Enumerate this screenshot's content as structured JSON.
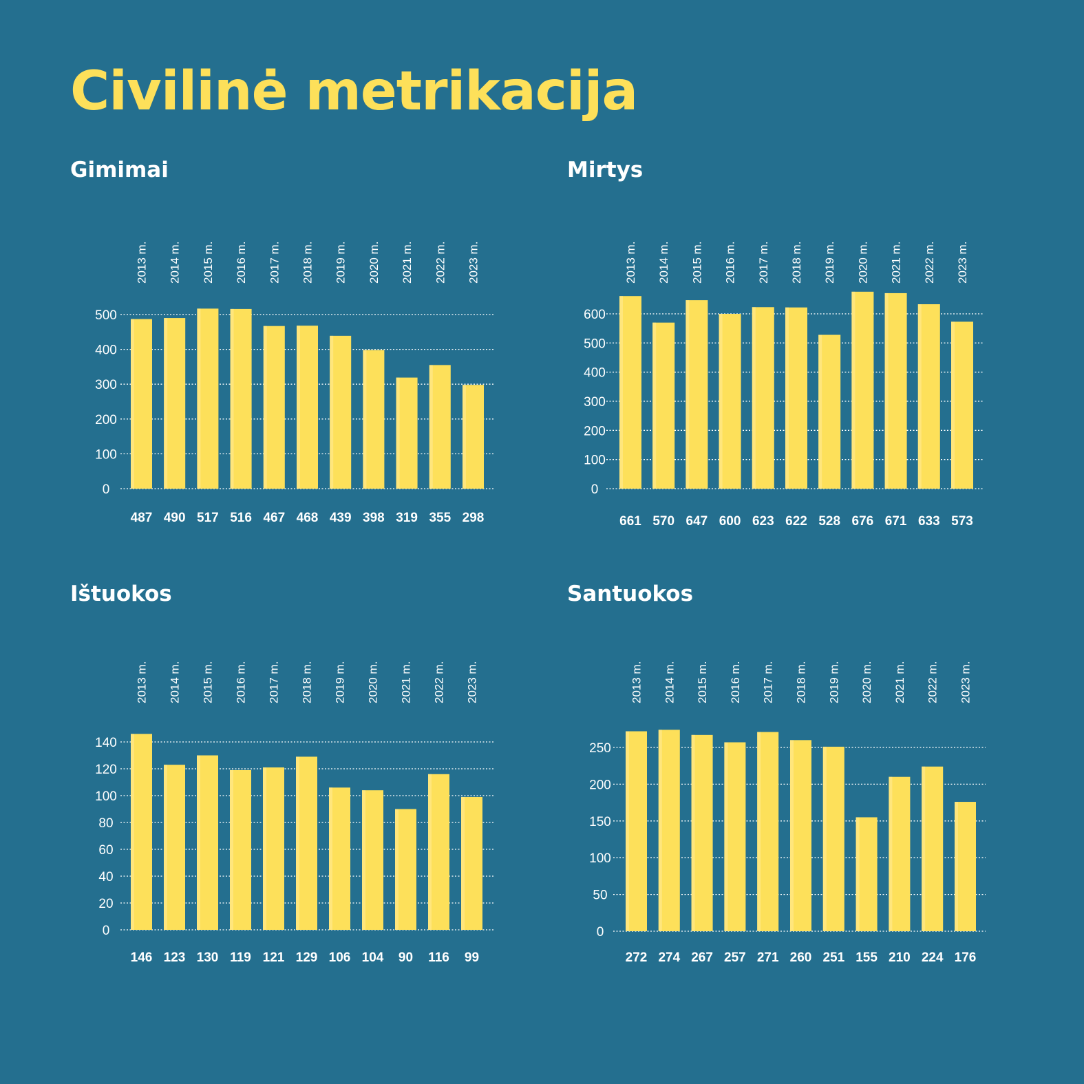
{
  "page": {
    "title": "Civilinė metrikacija",
    "colors": {
      "background": "#246f8f",
      "accent": "#fde05a",
      "bar": "#fde05a",
      "text": "#ffffff"
    }
  },
  "panels": [
    {
      "id": "gimimai",
      "title": "Gimimai"
    },
    {
      "id": "mirtys",
      "title": "Mirtys"
    },
    {
      "id": "istuokos",
      "title": "Ištuokos"
    },
    {
      "id": "santuokos",
      "title": "Santuokos"
    }
  ],
  "chart_data": [
    {
      "type": "bar",
      "title": "Gimimai",
      "categories": [
        "2013 m.",
        "2014 m.",
        "2015 m.",
        "2016 m.",
        "2017 m.",
        "2018 m.",
        "2019 m.",
        "2020 m.",
        "2021 m.",
        "2022 m.",
        "2023 m."
      ],
      "values": [
        487,
        490,
        517,
        516,
        467,
        468,
        439,
        398,
        319,
        355,
        298
      ],
      "value_labels": [
        "487",
        "490",
        "517",
        "516",
        "467",
        "468",
        "439",
        "398",
        "319",
        "355",
        "298"
      ],
      "yticks": [
        0,
        100,
        200,
        300,
        400,
        500
      ],
      "ylim": [
        0,
        500
      ],
      "grid": true,
      "legend": "none"
    },
    {
      "type": "bar",
      "title": "Mirtys",
      "categories": [
        "2013 m.",
        "2014 m.",
        "2015 m.",
        "2016 m.",
        "2017 m.",
        "2018 m.",
        "2019 m.",
        "2020 m.",
        "2021 m.",
        "2022 m.",
        "2023 m."
      ],
      "values": [
        661,
        570,
        647,
        600,
        623,
        622,
        528,
        676,
        671,
        633,
        573
      ],
      "value_labels": [
        "661",
        "570",
        "647",
        "600",
        "623",
        "622",
        "528",
        "676",
        "671",
        "633",
        "573"
      ],
      "yticks": [
        0,
        100,
        200,
        300,
        400,
        500,
        600
      ],
      "ylim": [
        0,
        600
      ],
      "grid": true,
      "legend": "none"
    },
    {
      "type": "bar",
      "title": "Ištuokos",
      "categories": [
        "2013 m.",
        "2014 m.",
        "2015 m.",
        "2016 m.",
        "2017 m.",
        "2018 m.",
        "2019 m.",
        "2020 m.",
        "2021 m.",
        "2022 m.",
        "2023 m."
      ],
      "values": [
        146,
        123,
        130,
        119,
        121,
        129,
        106,
        104,
        90,
        116,
        99
      ],
      "value_labels": [
        "146",
        "123",
        "130",
        "119",
        "121",
        "129",
        "106",
        "104",
        "90",
        "116",
        "99"
      ],
      "yticks": [
        0,
        20,
        40,
        60,
        80,
        100,
        120,
        140
      ],
      "ylim": [
        0,
        140
      ],
      "grid": true,
      "legend": "none"
    },
    {
      "type": "bar",
      "title": "Santuokos",
      "categories": [
        "2013 m.",
        "2014 m.",
        "2015 m.",
        "2016 m.",
        "2017 m.",
        "2018 m.",
        "2019 m.",
        "2020 m.",
        "2021 m.",
        "2022 m.",
        "2023 m."
      ],
      "values": [
        272,
        274,
        267,
        257,
        271,
        260,
        251,
        155,
        210,
        224,
        176
      ],
      "value_labels": [
        "272",
        "274",
        "267",
        "257",
        "271",
        "260",
        "251",
        "155",
        "210",
        "224",
        "176"
      ],
      "yticks": [
        0,
        50,
        100,
        150,
        200,
        250
      ],
      "ylim": [
        0,
        250
      ],
      "grid": true,
      "legend": "none"
    }
  ]
}
